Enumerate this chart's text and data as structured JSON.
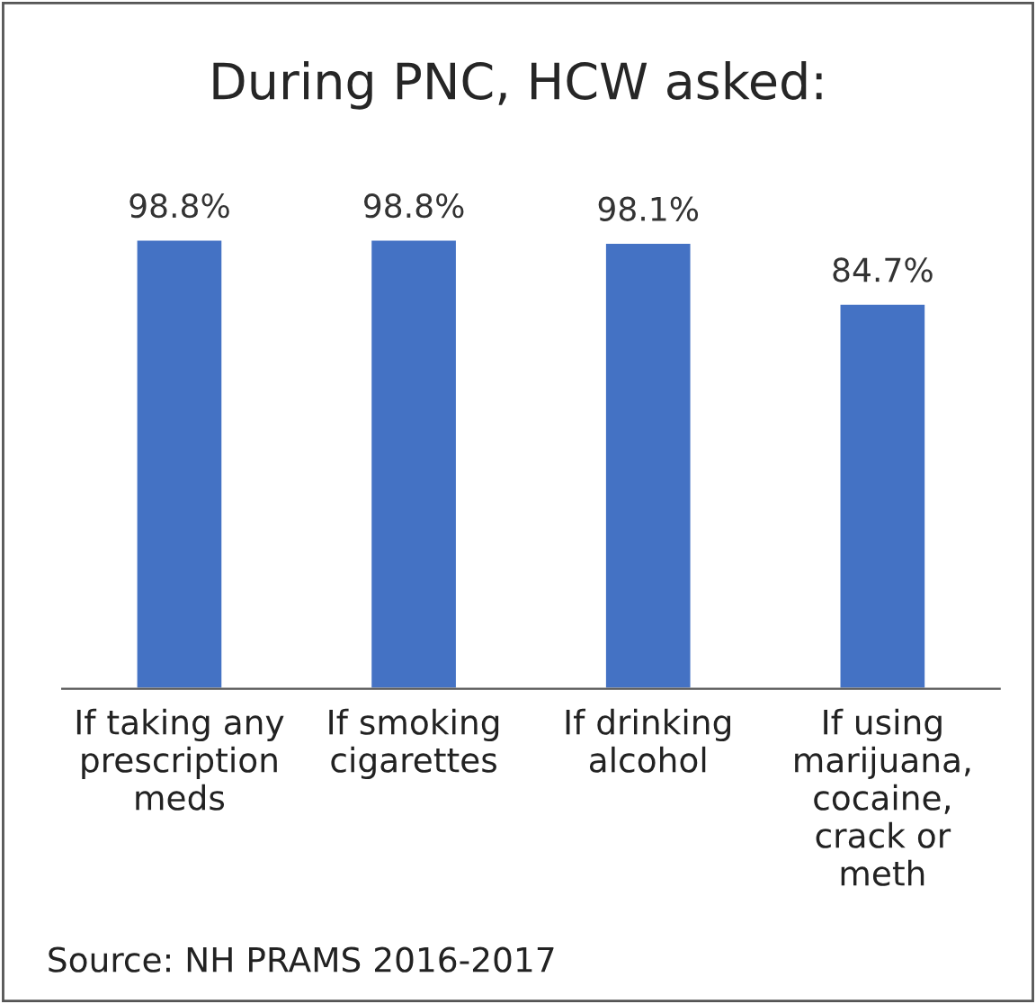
{
  "chart_data": {
    "type": "bar",
    "title": "During PNC, HCW asked:",
    "categories": [
      "If taking any\nprescription\nmeds",
      "If smoking\ncigarettes",
      "If drinking\nalcohol",
      "If using\nmarijuana,\ncocaine,\ncrack or\nmeth"
    ],
    "values": [
      98.8,
      98.8,
      98.1,
      84.7
    ],
    "value_labels": [
      "98.8%",
      "98.8%",
      "98.1%",
      "84.7%"
    ],
    "color": "#4472c4",
    "annotations": [
      "Source: NH PRAMS 2016-2017"
    ]
  }
}
